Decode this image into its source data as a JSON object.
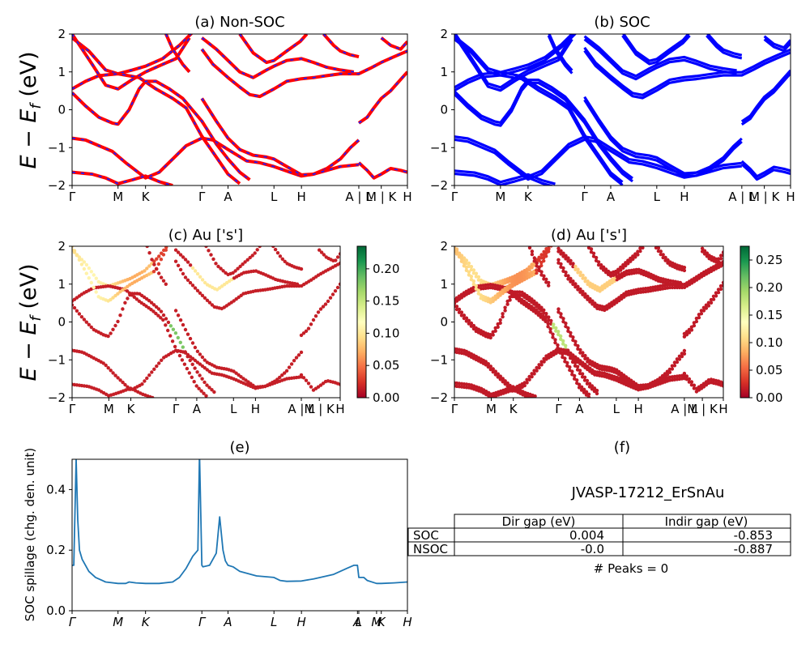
{
  "band_k_labels": [
    "Γ",
    "M",
    "K",
    "Γ",
    "A",
    "L",
    "H",
    "A | L",
    "M | K",
    "H"
  ],
  "band_k_pos": [
    0,
    0.137,
    0.219,
    0.387,
    0.465,
    0.602,
    0.684,
    0.855,
    0.922,
    1.0
  ],
  "spill_k_labels": [
    "Γ",
    "M",
    "K",
    "Γ",
    "A",
    "L",
    "H",
    "A",
    "L",
    "M",
    "K",
    "H"
  ],
  "spill_k_pos": [
    0,
    0.137,
    0.219,
    0.387,
    0.465,
    0.602,
    0.684,
    0.851,
    0.855,
    0.908,
    0.922,
    1.0
  ],
  "panel_titles": {
    "a": "(a) Non-SOC",
    "b": "(b) SOC",
    "c": "(c)  Au ['s']",
    "d": "(d) Au ['s']",
    "e": "(e)",
    "f": "(f)"
  },
  "band_ylabel": "E − E",
  "band_ylabel_sub": "f",
  "band_ylabel_unit": " (eV)",
  "spill_ylabel": "SOC spillage (chg. den. unit)",
  "colorbar_c": {
    "ticks": [
      "0.00",
      "0.05",
      "0.10",
      "0.15",
      "0.20"
    ],
    "tick_values": [
      0,
      0.05,
      0.1,
      0.15,
      0.2
    ],
    "max": 0.235
  },
  "colorbar_d": {
    "ticks": [
      "0.00",
      "0.05",
      "0.10",
      "0.15",
      "0.20",
      "0.25"
    ],
    "tick_values": [
      0,
      0.05,
      0.1,
      0.15,
      0.2,
      0.25
    ],
    "max": 0.275
  },
  "info": {
    "material": "JVASP-17212_ErSnAu",
    "headers": [
      "Dir gap (eV)",
      "Indir gap (eV)"
    ],
    "rows": [
      {
        "label": "SOC",
        "dir": "0.004",
        "indir": "-0.853"
      },
      {
        "label": "NSOC",
        "dir": "-0.0",
        "indir": "-0.887"
      }
    ],
    "peaks": "# Peaks = 0"
  },
  "colors": {
    "nonsoc": "#ff0000",
    "nonsoc_dash": "#1f1fff",
    "soc": "#0000ff",
    "spillage": "#1f77b4"
  },
  "chart_data": [
    {
      "type": "line",
      "title": "(a) Non-SOC",
      "ylabel": "E − E_f (eV)",
      "ylim": [
        -2,
        2
      ],
      "xlim": [
        0,
        1
      ],
      "bands": [
        [
          [
            0,
            1.9
          ],
          [
            0.05,
            1.55
          ],
          [
            0.1,
            1.05
          ],
          [
            0.137,
            0.95
          ],
          [
            0.18,
            1.05
          ],
          [
            0.219,
            1.15
          ],
          [
            0.27,
            1.35
          ],
          [
            0.32,
            1.7
          ],
          [
            0.36,
            2.05
          ]
        ],
        [
          [
            0,
            0.55
          ],
          [
            0.04,
            0.75
          ],
          [
            0.08,
            0.9
          ],
          [
            0.137,
            0.95
          ],
          [
            0.2,
            0.85
          ],
          [
            0.25,
            0.55
          ],
          [
            0.3,
            0.3
          ],
          [
            0.34,
            0.05
          ],
          [
            0.387,
            -0.7
          ],
          [
            0.43,
            -1.25
          ],
          [
            0.465,
            -1.7
          ],
          [
            0.5,
            -1.95
          ]
        ],
        [
          [
            0,
            0.45
          ],
          [
            0.04,
            0.1
          ],
          [
            0.08,
            -0.2
          ],
          [
            0.12,
            -0.35
          ],
          [
            0.137,
            -0.38
          ],
          [
            0.17,
            0.0
          ],
          [
            0.2,
            0.55
          ],
          [
            0.219,
            0.75
          ],
          [
            0.25,
            0.75
          ],
          [
            0.29,
            0.55
          ],
          [
            0.33,
            0.3
          ],
          [
            0.387,
            -0.3
          ],
          [
            0.43,
            -0.9
          ],
          [
            0.465,
            -1.3
          ],
          [
            0.5,
            -1.65
          ],
          [
            0.53,
            -1.85
          ]
        ],
        [
          [
            0,
            -0.75
          ],
          [
            0.04,
            -0.8
          ],
          [
            0.08,
            -0.95
          ],
          [
            0.12,
            -1.1
          ],
          [
            0.16,
            -1.4
          ],
          [
            0.219,
            -1.8
          ],
          [
            0.26,
            -1.65
          ],
          [
            0.3,
            -1.3
          ],
          [
            0.34,
            -0.95
          ],
          [
            0.387,
            -0.75
          ],
          [
            0.42,
            -0.8
          ],
          [
            0.465,
            -1.05
          ],
          [
            0.52,
            -1.35
          ],
          [
            0.56,
            -1.4
          ],
          [
            0.602,
            -1.5
          ],
          [
            0.65,
            -1.65
          ],
          [
            0.684,
            -1.75
          ],
          [
            0.72,
            -1.7
          ],
          [
            0.76,
            -1.55
          ],
          [
            0.8,
            -1.3
          ],
          [
            0.83,
            -1.0
          ],
          [
            0.855,
            -0.8
          ]
        ],
        [
          [
            0,
            -1.65
          ],
          [
            0.06,
            -1.7
          ],
          [
            0.1,
            -1.8
          ],
          [
            0.137,
            -1.95
          ],
          [
            0.18,
            -1.85
          ],
          [
            0.219,
            -1.75
          ],
          [
            0.26,
            -1.9
          ],
          [
            0.3,
            -2.0
          ]
        ],
        [
          [
            0,
            2.0
          ],
          [
            0.03,
            1.6
          ],
          [
            0.06,
            1.2
          ],
          [
            0.1,
            0.65
          ],
          [
            0.137,
            0.55
          ],
          [
            0.18,
            0.8
          ],
          [
            0.219,
            1.0
          ],
          [
            0.27,
            1.2
          ],
          [
            0.31,
            1.35
          ],
          [
            0.35,
            1.9
          ]
        ],
        [
          [
            0.387,
            1.6
          ],
          [
            0.42,
            1.2
          ],
          [
            0.465,
            0.85
          ],
          [
            0.5,
            0.6
          ],
          [
            0.53,
            0.4
          ],
          [
            0.56,
            0.35
          ],
          [
            0.602,
            0.55
          ],
          [
            0.64,
            0.75
          ],
          [
            0.684,
            0.82
          ],
          [
            0.72,
            0.85
          ],
          [
            0.76,
            0.9
          ],
          [
            0.8,
            0.95
          ],
          [
            0.855,
            0.95
          ],
          [
            0.89,
            1.1
          ],
          [
            0.922,
            1.25
          ],
          [
            0.96,
            1.4
          ],
          [
            1.0,
            1.55
          ]
        ],
        [
          [
            0.387,
            1.9
          ],
          [
            0.43,
            1.6
          ],
          [
            0.465,
            1.3
          ],
          [
            0.5,
            1.0
          ],
          [
            0.54,
            0.85
          ],
          [
            0.58,
            1.05
          ],
          [
            0.602,
            1.15
          ],
          [
            0.64,
            1.3
          ],
          [
            0.684,
            1.35
          ],
          [
            0.72,
            1.25
          ],
          [
            0.76,
            1.12
          ],
          [
            0.8,
            1.05
          ],
          [
            0.84,
            1.0
          ]
        ],
        [
          [
            0.5,
            2.0
          ],
          [
            0.54,
            1.5
          ],
          [
            0.58,
            1.25
          ],
          [
            0.602,
            1.3
          ],
          [
            0.64,
            1.55
          ],
          [
            0.68,
            1.8
          ],
          [
            0.7,
            2.0
          ]
        ],
        [
          [
            0.387,
            0.3
          ],
          [
            0.43,
            -0.3
          ],
          [
            0.465,
            -0.75
          ],
          [
            0.5,
            -1.05
          ],
          [
            0.54,
            -1.2
          ],
          [
            0.58,
            -1.25
          ],
          [
            0.602,
            -1.3
          ],
          [
            0.64,
            -1.5
          ],
          [
            0.684,
            -1.72
          ],
          [
            0.72,
            -1.7
          ],
          [
            0.76,
            -1.6
          ],
          [
            0.8,
            -1.5
          ],
          [
            0.855,
            -1.45
          ]
        ],
        [
          [
            0.855,
            -0.35
          ],
          [
            0.88,
            -0.2
          ],
          [
            0.9,
            0.05
          ],
          [
            0.922,
            0.3
          ],
          [
            0.95,
            0.5
          ],
          [
            0.98,
            0.8
          ],
          [
            1.0,
            1.0
          ]
        ],
        [
          [
            0.855,
            -1.4
          ],
          [
            0.88,
            -1.6
          ],
          [
            0.9,
            -1.8
          ],
          [
            0.922,
            -1.7
          ],
          [
            0.95,
            -1.55
          ],
          [
            0.98,
            -1.6
          ],
          [
            1.0,
            -1.65
          ]
        ],
        [
          [
            0.922,
            1.9
          ],
          [
            0.95,
            1.7
          ],
          [
            0.98,
            1.6
          ],
          [
            1.0,
            1.8
          ]
        ],
        [
          [
            0.75,
            2.0
          ],
          [
            0.78,
            1.7
          ],
          [
            0.8,
            1.55
          ],
          [
            0.83,
            1.45
          ],
          [
            0.855,
            1.4
          ]
        ],
        [
          [
            0.28,
            2.0
          ],
          [
            0.3,
            1.6
          ],
          [
            0.33,
            1.2
          ],
          [
            0.35,
            1.0
          ]
        ]
      ]
    },
    {
      "type": "line",
      "title": "(b) SOC",
      "ylim": [
        -2,
        2
      ],
      "xlim": [
        0,
        1
      ],
      "bands_ref": "same as (a), spin-orbit split"
    },
    {
      "type": "scatter",
      "title": "(c)  Au ['s']",
      "ylim": [
        -2,
        2
      ],
      "colorbar_range": [
        0,
        0.235
      ]
    },
    {
      "type": "scatter",
      "title": "(d) Au ['s']",
      "ylim": [
        -2,
        2
      ],
      "colorbar_range": [
        0,
        0.275
      ]
    },
    {
      "type": "line",
      "title": "(e)",
      "ylabel": "SOC spillage (chg. den. unit)",
      "ylim": [
        0,
        0.5
      ],
      "yticks": [
        0.0,
        0.2,
        0.4
      ],
      "x": [
        0,
        0.005,
        0.012,
        0.017,
        0.022,
        0.03,
        0.05,
        0.07,
        0.1,
        0.137,
        0.16,
        0.17,
        0.19,
        0.219,
        0.26,
        0.3,
        0.32,
        0.34,
        0.36,
        0.375,
        0.38,
        0.387,
        0.39,
        0.41,
        0.43,
        0.44,
        0.45,
        0.457,
        0.465,
        0.48,
        0.5,
        0.55,
        0.602,
        0.62,
        0.64,
        0.684,
        0.72,
        0.78,
        0.82,
        0.84,
        0.851,
        0.855,
        0.87,
        0.88,
        0.908,
        0.922,
        0.96,
        1.0
      ],
      "y": [
        0.15,
        0.15,
        0.5,
        0.3,
        0.2,
        0.17,
        0.13,
        0.11,
        0.095,
        0.09,
        0.09,
        0.095,
        0.092,
        0.09,
        0.09,
        0.095,
        0.11,
        0.14,
        0.18,
        0.2,
        0.52,
        0.15,
        0.145,
        0.15,
        0.19,
        0.31,
        0.2,
        0.165,
        0.15,
        0.145,
        0.13,
        0.115,
        0.11,
        0.1,
        0.097,
        0.098,
        0.105,
        0.12,
        0.14,
        0.15,
        0.15,
        0.11,
        0.11,
        0.1,
        0.09,
        0.09,
        0.092,
        0.095
      ]
    }
  ]
}
